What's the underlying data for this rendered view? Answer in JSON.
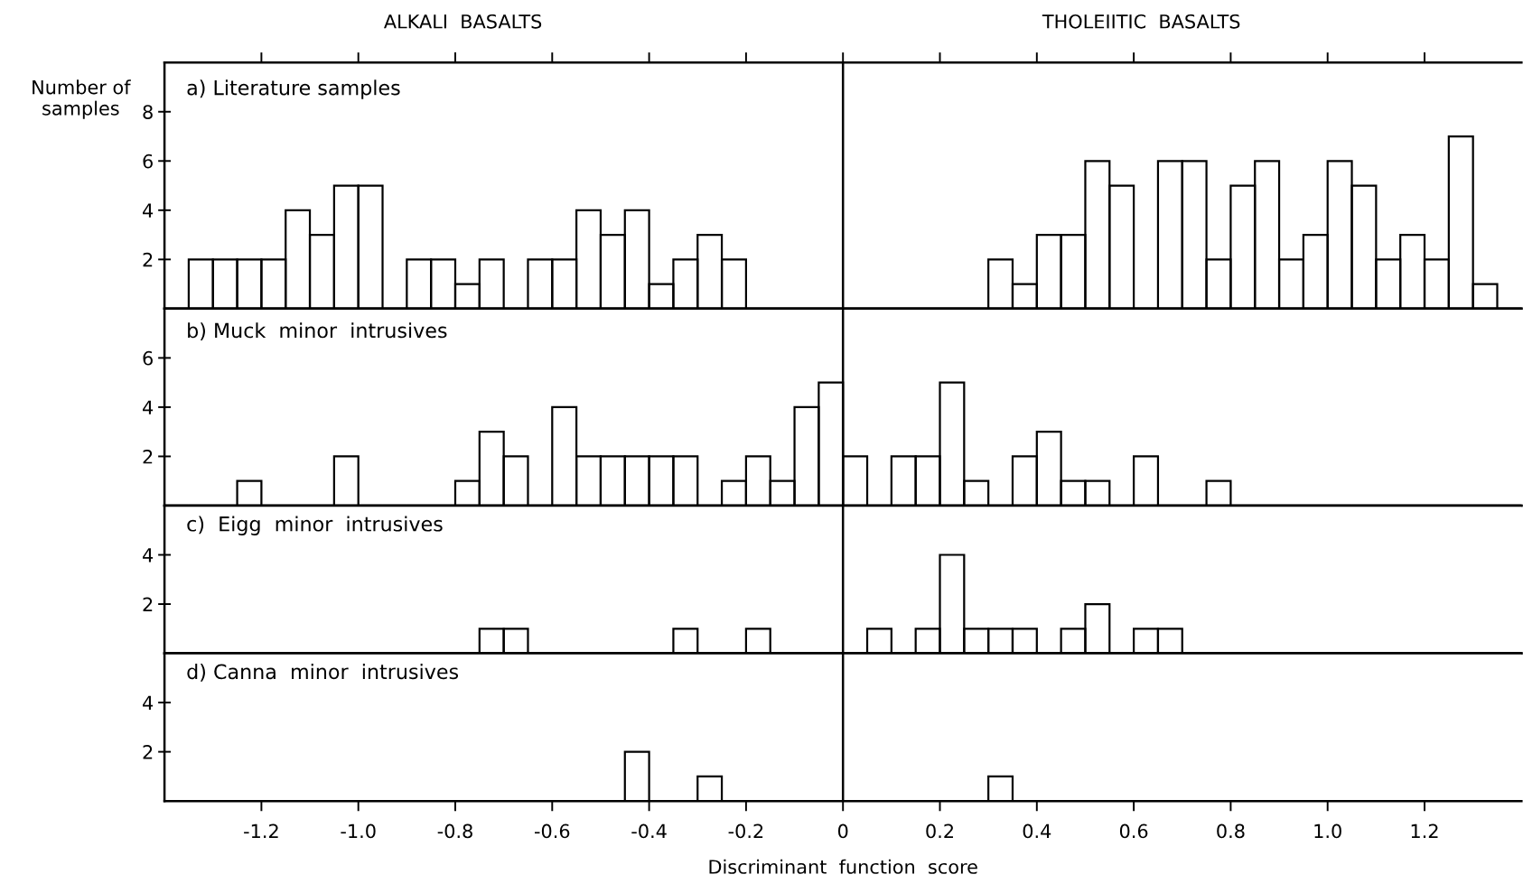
{
  "chart_data": [
    {
      "type": "histogram",
      "title": "a) Literature samples",
      "ylabel": "Number of\nsamples",
      "annotations": [
        "ALKALI  BASALTS",
        "THOLEIITIC  BASALTS"
      ],
      "color": "#000000",
      "bins": [
        -1.4,
        -1.35,
        -1.3,
        -1.25,
        -1.2,
        -1.15,
        -1.1,
        -1.05,
        -1.0,
        -0.95,
        -0.9,
        -0.85,
        -0.8,
        -0.75,
        -0.7,
        -0.65,
        -0.6,
        -0.55,
        -0.5,
        -0.45,
        -0.4,
        -0.35,
        -0.3,
        -0.25,
        -0.2,
        -0.15,
        -0.1,
        -0.05,
        0,
        0.05,
        0.1,
        0.15,
        0.2,
        0.25,
        0.3,
        0.35,
        0.4,
        0.45,
        0.5,
        0.55,
        0.6,
        0.65,
        0.7,
        0.75,
        0.8,
        0.85,
        0.9,
        0.95,
        1.0,
        1.05,
        1.1,
        1.15,
        1.2,
        1.25,
        1.3,
        1.35,
        1.4
      ],
      "values": [
        0,
        2,
        2,
        2,
        2,
        4,
        3,
        5,
        5,
        0,
        2,
        2,
        1,
        2,
        0,
        2,
        2,
        4,
        3,
        4,
        1,
        2,
        3,
        2,
        0,
        0,
        0,
        0,
        0,
        0,
        0,
        0,
        0,
        0,
        2,
        1,
        3,
        3,
        6,
        5,
        0,
        6,
        6,
        2,
        5,
        6,
        2,
        3,
        6,
        5,
        2,
        3,
        2,
        7,
        1,
        0
      ],
      "xlim": [
        -1.4,
        1.4
      ],
      "ylim": [
        0,
        10
      ],
      "yticks": [
        2,
        4,
        6,
        8
      ],
      "tick_labels": "y",
      "ref_lines": [
        {
          "axis": "x",
          "value": 0,
          "color": "#000000"
        }
      ]
    },
    {
      "type": "histogram",
      "title": "b) Muck  minor  intrusives",
      "color": "#000000",
      "bins": [
        -1.4,
        -1.35,
        -1.3,
        -1.25,
        -1.2,
        -1.15,
        -1.1,
        -1.05,
        -1.0,
        -0.95,
        -0.9,
        -0.85,
        -0.8,
        -0.75,
        -0.7,
        -0.65,
        -0.6,
        -0.55,
        -0.5,
        -0.45,
        -0.4,
        -0.35,
        -0.3,
        -0.25,
        -0.2,
        -0.15,
        -0.1,
        -0.05,
        0,
        0.05,
        0.1,
        0.15,
        0.2,
        0.25,
        0.3,
        0.35,
        0.4,
        0.45,
        0.5,
        0.55,
        0.6,
        0.65,
        0.7,
        0.75,
        0.8,
        0.85,
        0.9,
        0.95,
        1.0,
        1.05,
        1.1,
        1.15,
        1.2,
        1.25,
        1.3,
        1.35,
        1.4
      ],
      "values": [
        0,
        0,
        0,
        1,
        0,
        0,
        0,
        2,
        0,
        0,
        0,
        0,
        1,
        3,
        2,
        0,
        4,
        2,
        2,
        2,
        2,
        2,
        0,
        1,
        2,
        1,
        4,
        5,
        2,
        0,
        2,
        2,
        5,
        1,
        0,
        2,
        3,
        1,
        1,
        0,
        2,
        0,
        0,
        1,
        0,
        0,
        0,
        0,
        0,
        0,
        0,
        0,
        0,
        0,
        0,
        0
      ],
      "xlim": [
        -1.4,
        1.4
      ],
      "ylim": [
        0,
        8
      ],
      "yticks": [
        2,
        4,
        6
      ],
      "tick_labels": "y",
      "ref_lines": [
        {
          "axis": "x",
          "value": 0,
          "color": "#000000"
        }
      ]
    },
    {
      "type": "histogram",
      "title": "c)  Eigg  minor  intrusives",
      "color": "#000000",
      "bins": [
        -1.4,
        -1.35,
        -1.3,
        -1.25,
        -1.2,
        -1.15,
        -1.1,
        -1.05,
        -1.0,
        -0.95,
        -0.9,
        -0.85,
        -0.8,
        -0.75,
        -0.7,
        -0.65,
        -0.6,
        -0.55,
        -0.5,
        -0.45,
        -0.4,
        -0.35,
        -0.3,
        -0.25,
        -0.2,
        -0.15,
        -0.1,
        -0.05,
        0,
        0.05,
        0.1,
        0.15,
        0.2,
        0.25,
        0.3,
        0.35,
        0.4,
        0.45,
        0.5,
        0.55,
        0.6,
        0.65,
        0.7,
        0.75,
        0.8,
        0.85,
        0.9,
        0.95,
        1.0,
        1.05,
        1.1,
        1.15,
        1.2,
        1.25,
        1.3,
        1.35,
        1.4
      ],
      "values": [
        0,
        0,
        0,
        0,
        0,
        0,
        0,
        0,
        0,
        0,
        0,
        0,
        0,
        1,
        1,
        0,
        0,
        0,
        0,
        0,
        0,
        1,
        0,
        0,
        1,
        0,
        0,
        0,
        0,
        1,
        0,
        1,
        4,
        1,
        1,
        1,
        0,
        1,
        2,
        0,
        1,
        1,
        0,
        0,
        0,
        0,
        0,
        0,
        0,
        0,
        0,
        0,
        0,
        0,
        0,
        0
      ],
      "xlim": [
        -1.4,
        1.4
      ],
      "ylim": [
        0,
        6
      ],
      "yticks": [
        2,
        4
      ],
      "tick_labels": "y",
      "ref_lines": [
        {
          "axis": "x",
          "value": 0,
          "color": "#000000"
        }
      ]
    },
    {
      "type": "histogram",
      "title": "d) Canna  minor  intrusives",
      "xlabel": "Discriminant  function  score",
      "color": "#000000",
      "bins": [
        -1.4,
        -1.35,
        -1.3,
        -1.25,
        -1.2,
        -1.15,
        -1.1,
        -1.05,
        -1.0,
        -0.95,
        -0.9,
        -0.85,
        -0.8,
        -0.75,
        -0.7,
        -0.65,
        -0.6,
        -0.55,
        -0.5,
        -0.45,
        -0.4,
        -0.35,
        -0.3,
        -0.25,
        -0.2,
        -0.15,
        -0.1,
        -0.05,
        0,
        0.05,
        0.1,
        0.15,
        0.2,
        0.25,
        0.3,
        0.35,
        0.4,
        0.45,
        0.5,
        0.55,
        0.6,
        0.65,
        0.7,
        0.75,
        0.8,
        0.85,
        0.9,
        0.95,
        1.0,
        1.05,
        1.1,
        1.15,
        1.2,
        1.25,
        1.3,
        1.35,
        1.4
      ],
      "values": [
        0,
        0,
        0,
        0,
        0,
        0,
        0,
        0,
        0,
        0,
        0,
        0,
        0,
        0,
        0,
        0,
        0,
        0,
        0,
        2,
        0,
        0,
        1,
        0,
        0,
        0,
        0,
        0,
        0,
        0,
        0,
        0,
        0,
        0,
        1,
        0,
        0,
        0,
        0,
        0,
        0,
        0,
        0,
        0,
        0,
        0,
        0,
        0,
        0,
        0,
        0,
        0,
        0,
        0,
        0,
        0
      ],
      "xlim": [
        -1.4,
        1.4
      ],
      "xticks": [
        -1.2,
        {
          "value": -1.0,
          "label": "-1.0"
        },
        -0.8,
        -0.6,
        -0.4,
        -0.2,
        0,
        0.2,
        0.4,
        0.6,
        0.8,
        {
          "value": 1.0,
          "label": "1.0"
        },
        1.2
      ],
      "ylim": [
        0,
        6
      ],
      "yticks": [
        2,
        4
      ],
      "ref_lines": [
        {
          "axis": "x",
          "value": 0,
          "color": "#000000"
        }
      ]
    }
  ]
}
